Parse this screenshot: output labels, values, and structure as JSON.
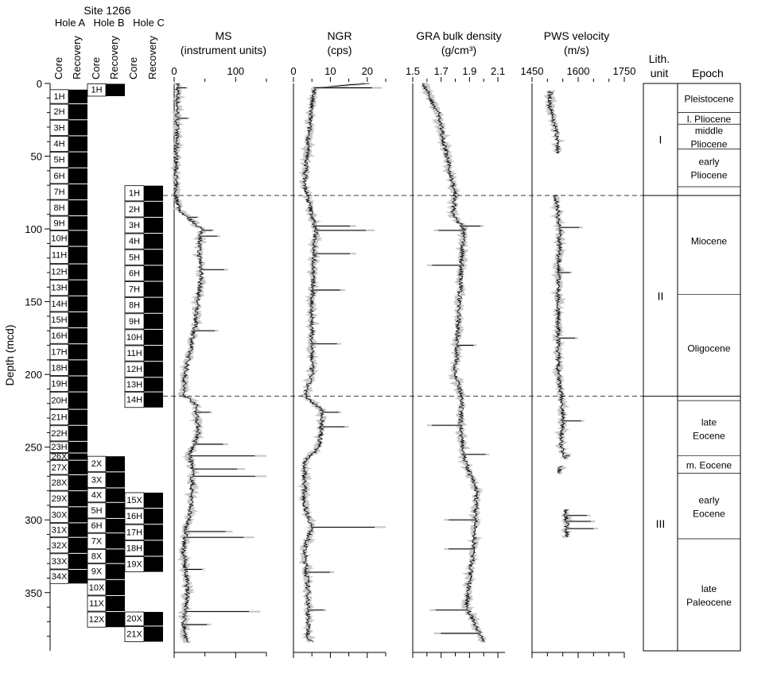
{
  "title": "Site 1266",
  "ylabel": "Depth (mcd)",
  "holes": [
    {
      "name": "Hole A",
      "core_header": "Core",
      "recovery_header": "Recovery"
    },
    {
      "name": "Hole B",
      "core_header": "Core",
      "recovery_header": "Recovery"
    },
    {
      "name": "Hole C",
      "core_header": "Core",
      "recovery_header": "Recovery"
    }
  ],
  "depth_axis": {
    "min": 0,
    "max": 390,
    "ticks": [
      0,
      50,
      100,
      150,
      200,
      250,
      300,
      350
    ]
  },
  "unit_boundaries": [
    77,
    215
  ],
  "chart_data": {
    "type": "line",
    "y_axis": "depth (mcd)",
    "cores": {
      "hole_a": [
        {
          "label": "1H",
          "top": 4,
          "bottom": 14
        },
        {
          "label": "2H",
          "top": 14,
          "bottom": 25
        },
        {
          "label": "3H",
          "top": 25,
          "bottom": 36
        },
        {
          "label": "4H",
          "top": 36,
          "bottom": 47
        },
        {
          "label": "5H",
          "top": 47,
          "bottom": 58
        },
        {
          "label": "6H",
          "top": 58,
          "bottom": 69
        },
        {
          "label": "7H",
          "top": 69,
          "bottom": 80
        },
        {
          "label": "8H",
          "top": 80,
          "bottom": 91
        },
        {
          "label": "9H",
          "top": 91,
          "bottom": 101
        },
        {
          "label": "10H",
          "top": 101,
          "bottom": 112
        },
        {
          "label": "11H",
          "top": 112,
          "bottom": 124
        },
        {
          "label": "12H",
          "top": 124,
          "bottom": 135
        },
        {
          "label": "13H",
          "top": 135,
          "bottom": 146
        },
        {
          "label": "14H",
          "top": 146,
          "bottom": 157
        },
        {
          "label": "15H",
          "top": 157,
          "bottom": 168
        },
        {
          "label": "16H",
          "top": 168,
          "bottom": 179
        },
        {
          "label": "17H",
          "top": 179,
          "bottom": 190
        },
        {
          "label": "18H",
          "top": 190,
          "bottom": 201
        },
        {
          "label": "19H",
          "top": 201,
          "bottom": 212
        },
        {
          "label": "20H",
          "top": 212,
          "bottom": 224
        },
        {
          "label": "21H",
          "top": 224,
          "bottom": 235
        },
        {
          "label": "22H",
          "top": 235,
          "bottom": 246
        },
        {
          "label": "23H",
          "top": 246,
          "bottom": 254
        },
        {
          "label": "26X",
          "top": 254,
          "bottom": 259
        },
        {
          "label": "27X",
          "top": 259,
          "bottom": 269
        },
        {
          "label": "28X",
          "top": 269,
          "bottom": 280
        },
        {
          "label": "29X",
          "top": 280,
          "bottom": 291
        },
        {
          "label": "30X",
          "top": 291,
          "bottom": 302
        },
        {
          "label": "31X",
          "top": 302,
          "bottom": 312
        },
        {
          "label": "32X",
          "top": 312,
          "bottom": 323
        },
        {
          "label": "33X",
          "top": 323,
          "bottom": 334
        },
        {
          "label": "34X",
          "top": 334,
          "bottom": 344
        }
      ],
      "hole_b": [
        {
          "label": "1H",
          "top": 0,
          "bottom": 9
        },
        {
          "label": "2X",
          "top": 256,
          "bottom": 267
        },
        {
          "label": "3X",
          "top": 267,
          "bottom": 278
        },
        {
          "label": "4X",
          "top": 278,
          "bottom": 288
        },
        {
          "label": "5H",
          "top": 288,
          "bottom": 299
        },
        {
          "label": "6H",
          "top": 299,
          "bottom": 309
        },
        {
          "label": "7X",
          "top": 309,
          "bottom": 320
        },
        {
          "label": "8X",
          "top": 320,
          "bottom": 330
        },
        {
          "label": "9X",
          "top": 330,
          "bottom": 341
        },
        {
          "label": "10X",
          "top": 341,
          "bottom": 352
        },
        {
          "label": "11X",
          "top": 352,
          "bottom": 363
        },
        {
          "label": "12X",
          "top": 363,
          "bottom": 374
        }
      ],
      "hole_c": [
        {
          "label": "1H",
          "top": 70,
          "bottom": 81
        },
        {
          "label": "2H",
          "top": 81,
          "bottom": 92
        },
        {
          "label": "3H",
          "top": 92,
          "bottom": 103
        },
        {
          "label": "4H",
          "top": 103,
          "bottom": 114
        },
        {
          "label": "5H",
          "top": 114,
          "bottom": 125
        },
        {
          "label": "6H",
          "top": 125,
          "bottom": 136
        },
        {
          "label": "7H",
          "top": 136,
          "bottom": 147
        },
        {
          "label": "8H",
          "top": 147,
          "bottom": 158
        },
        {
          "label": "9H",
          "top": 158,
          "bottom": 169
        },
        {
          "label": "10H",
          "top": 169,
          "bottom": 180
        },
        {
          "label": "11H",
          "top": 180,
          "bottom": 191
        },
        {
          "label": "12H",
          "top": 191,
          "bottom": 202
        },
        {
          "label": "13H",
          "top": 202,
          "bottom": 212
        },
        {
          "label": "14H",
          "top": 212,
          "bottom": 223
        },
        {
          "label": "15X",
          "top": 281,
          "bottom": 292
        },
        {
          "label": "16H",
          "top": 292,
          "bottom": 303
        },
        {
          "label": "17H",
          "top": 303,
          "bottom": 314
        },
        {
          "label": "18H",
          "top": 314,
          "bottom": 325
        },
        {
          "label": "19X",
          "top": 325,
          "bottom": 336
        },
        {
          "label": "20X",
          "top": 363,
          "bottom": 373
        },
        {
          "label": "21X",
          "top": 373,
          "bottom": 384
        }
      ]
    },
    "tracks": [
      {
        "key": "ms",
        "title": "MS",
        "unit": "(instrument units)",
        "xlim": [
          0,
          150
        ],
        "ticks": [
          0,
          100
        ],
        "minor_ticks": [
          50,
          150
        ],
        "profile": [
          [
            0,
            6
          ],
          [
            20,
            5
          ],
          [
            60,
            3
          ],
          [
            76,
            2
          ],
          [
            88,
            10
          ],
          [
            100,
            45
          ],
          [
            115,
            40
          ],
          [
            130,
            45
          ],
          [
            150,
            38
          ],
          [
            165,
            35
          ],
          [
            200,
            18
          ],
          [
            214,
            15
          ],
          [
            220,
            35
          ],
          [
            240,
            40
          ],
          [
            255,
            25
          ],
          [
            265,
            30
          ],
          [
            290,
            28
          ],
          [
            305,
            20
          ],
          [
            320,
            15
          ],
          [
            340,
            20
          ],
          [
            355,
            22
          ],
          [
            370,
            15
          ],
          [
            384,
            20
          ]
        ],
        "spikes": [
          [
            3,
            22
          ],
          [
            24,
            25
          ],
          [
            92,
            40
          ],
          [
            101,
            65
          ],
          [
            105,
            75
          ],
          [
            128,
            88
          ],
          [
            170,
            72
          ],
          [
            226,
            62
          ],
          [
            248,
            88
          ],
          [
            256,
            150
          ],
          [
            265,
            115
          ],
          [
            270,
            150
          ],
          [
            308,
            95
          ],
          [
            312,
            130
          ],
          [
            334,
            50
          ],
          [
            363,
            140
          ],
          [
            372,
            60
          ]
        ]
      },
      {
        "key": "ngr",
        "title": "NGR",
        "unit": "(cps)",
        "xlim": [
          0,
          25
        ],
        "ticks": [
          0,
          10,
          20
        ],
        "minor_ticks": [
          5,
          15,
          25
        ],
        "profile": [
          [
            0,
            20
          ],
          [
            3,
            6
          ],
          [
            12,
            5
          ],
          [
            40,
            4
          ],
          [
            70,
            3
          ],
          [
            100,
            6
          ],
          [
            150,
            5
          ],
          [
            200,
            5
          ],
          [
            215,
            3
          ],
          [
            225,
            8
          ],
          [
            250,
            7
          ],
          [
            260,
            3
          ],
          [
            290,
            3
          ],
          [
            305,
            5
          ],
          [
            320,
            3
          ],
          [
            350,
            4
          ],
          [
            380,
            4
          ],
          [
            384,
            5
          ]
        ],
        "spikes": [
          [
            3,
            24
          ],
          [
            98,
            17
          ],
          [
            101,
            22
          ],
          [
            117,
            17
          ],
          [
            142,
            14
          ],
          [
            179,
            13
          ],
          [
            226,
            13
          ],
          [
            236,
            15
          ],
          [
            305,
            25
          ],
          [
            336,
            11
          ],
          [
            362,
            9
          ]
        ]
      },
      {
        "key": "gra",
        "title": "GRA bulk density",
        "unit": "(g/cm³)",
        "xlim": [
          1.5,
          2.15
        ],
        "ticks": [
          1.5,
          1.7,
          1.9,
          2.1
        ],
        "minor_ticks": [
          1.6,
          1.8,
          2.0
        ],
        "profile": [
          [
            0,
            1.58
          ],
          [
            10,
            1.62
          ],
          [
            20,
            1.68
          ],
          [
            40,
            1.72
          ],
          [
            60,
            1.76
          ],
          [
            77,
            1.8
          ],
          [
            90,
            1.78
          ],
          [
            100,
            1.86
          ],
          [
            130,
            1.84
          ],
          [
            150,
            1.83
          ],
          [
            200,
            1.8
          ],
          [
            214,
            1.84
          ],
          [
            240,
            1.84
          ],
          [
            260,
            1.87
          ],
          [
            280,
            1.95
          ],
          [
            300,
            1.94
          ],
          [
            320,
            1.93
          ],
          [
            340,
            1.9
          ],
          [
            360,
            1.88
          ],
          [
            384,
            2.0
          ]
        ],
        "spikes": [
          [
            98,
            2.0
          ],
          [
            101,
            1.65
          ],
          [
            125,
            1.6
          ],
          [
            180,
            1.95
          ],
          [
            235,
            1.6
          ],
          [
            255,
            2.04
          ],
          [
            300,
            1.72
          ],
          [
            320,
            1.72
          ],
          [
            362,
            1.62
          ],
          [
            378,
            1.65
          ]
        ]
      },
      {
        "key": "pws",
        "title": "PWS velocity",
        "unit": "(m/s)",
        "xlim": [
          1450,
          1750
        ],
        "ticks": [
          1450,
          1600,
          1750
        ],
        "minor_ticks": [
          1500,
          1550,
          1650,
          1700
        ],
        "segments": [
          [
            5,
            48
          ],
          [
            77,
            258
          ],
          [
            263,
            268
          ],
          [
            293,
            312
          ]
        ],
        "profile": [
          [
            5,
            1510
          ],
          [
            15,
            1508
          ],
          [
            25,
            1520
          ],
          [
            35,
            1530
          ],
          [
            48,
            1535
          ],
          [
            77,
            1528
          ],
          [
            100,
            1540
          ],
          [
            150,
            1535
          ],
          [
            200,
            1535
          ],
          [
            215,
            1545
          ],
          [
            230,
            1550
          ],
          [
            250,
            1545
          ],
          [
            258,
            1560
          ],
          [
            263,
            1540
          ],
          [
            268,
            1540
          ],
          [
            293,
            1560
          ],
          [
            312,
            1565
          ]
        ],
        "spikes": [
          [
            99,
            1615
          ],
          [
            130,
            1580
          ],
          [
            175,
            1600
          ],
          [
            232,
            1620
          ],
          [
            256,
            1575
          ],
          [
            297,
            1640
          ],
          [
            301,
            1655
          ],
          [
            306,
            1665
          ]
        ]
      }
    ],
    "lith_units": [
      {
        "label": "I",
        "top": 0,
        "bottom": 77
      },
      {
        "label": "II",
        "top": 77,
        "bottom": 215
      },
      {
        "label": "III",
        "top": 215,
        "bottom": 390
      }
    ],
    "epochs": [
      {
        "label": "Pleistocene",
        "top": 0,
        "bottom": 20
      },
      {
        "label": "l. Pliocene",
        "top": 20,
        "bottom": 28
      },
      {
        "label": "middle|Pliocene",
        "top": 28,
        "bottom": 45
      },
      {
        "label": "early|Pliocene",
        "top": 45,
        "bottom": 71
      },
      {
        "label": "Miocene",
        "top": 71,
        "bottom": 145
      },
      {
        "label": "Oligocene",
        "top": 145,
        "bottom": 218
      },
      {
        "label": "late|Eocene",
        "top": 218,
        "bottom": 256
      },
      {
        "label": "m. Eocene",
        "top": 256,
        "bottom": 268
      },
      {
        "label": "early|Eocene",
        "top": 268,
        "bottom": 313
      },
      {
        "label": "late|Paleocene",
        "top": 313,
        "bottom": 390
      }
    ]
  },
  "lith_header": {
    "line1": "Lith.",
    "line2": "unit"
  },
  "epoch_header": "Epoch"
}
